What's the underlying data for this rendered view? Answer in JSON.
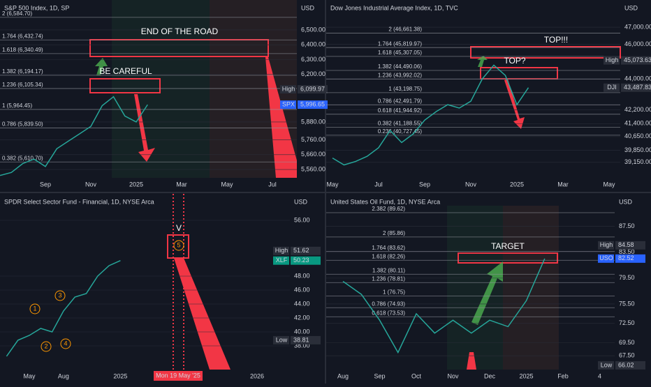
{
  "chart_data": [
    {
      "type": "line",
      "title": "S&P 500 Index, 1D, SP",
      "currency": "USD",
      "color": "#26a69a",
      "fib_color": "#9598a1",
      "categories": [
        null,
        null,
        null,
        null,
        "Sep",
        null,
        null,
        null,
        "Nov",
        null,
        null,
        null,
        "2025",
        null,
        null,
        null,
        "Mar",
        null,
        null,
        null,
        "May",
        null,
        null,
        null,
        "Jul",
        null,
        null
      ],
      "values": [
        5520,
        5540,
        5600,
        5630,
        5580,
        5700,
        5750,
        5800,
        5850,
        5990,
        6050,
        5920,
        5880,
        5996.65,
        null,
        null,
        null,
        null,
        null,
        null,
        null,
        null,
        null,
        null,
        null,
        null,
        null
      ],
      "ylim": [
        5504,
        6678
      ],
      "yticks": [
        {
          "value": 6500,
          "label": "6,500.00"
        },
        {
          "value": 6400,
          "label": "6,400.00"
        },
        {
          "value": 6300,
          "label": "6,300.00"
        },
        {
          "value": 6200,
          "label": "6,200.00"
        },
        {
          "value": 5880,
          "label": "5,880.00"
        },
        {
          "value": 5760,
          "label": "5,760.00"
        },
        {
          "value": 5660,
          "label": "5,660.00"
        },
        {
          "value": 5560,
          "label": "5,560.00"
        }
      ],
      "fib_levels": [
        {
          "value": 6584.7,
          "label": "2 (6,584.70)"
        },
        {
          "value": 6432.74,
          "label": "1.764 (6,432.74)"
        },
        {
          "value": 6340.49,
          "label": "1.618 (6,340.49)"
        },
        {
          "value": 6194.17,
          "label": "1.382 (6,194.17)"
        },
        {
          "value": 6105.34,
          "label": "1.236 (6,105.34)"
        },
        {
          "value": 5964.45,
          "label": "1 (5,964.45)"
        },
        {
          "value": 5839.5,
          "label": "0.786 (5,839.50)"
        },
        {
          "value": 5610.7,
          "label": "0.382 (5,610.70)"
        }
      ],
      "price_labels": [
        {
          "name": "High",
          "value": 6099.97,
          "label": "6,099.97",
          "color": "#2a2e39"
        },
        {
          "name": "SPX",
          "value": 5996.65,
          "label": "5,996.65",
          "color": "#2962ff"
        }
      ],
      "annotations": [
        "END OF THE ROAD",
        "BE CAREFUL"
      ]
    },
    {
      "type": "line",
      "title": "Dow Jones Industrial Average Index, 1D, TVC",
      "currency": "USD",
      "color": "#26a69a",
      "fib_color": "#9598a1",
      "categories": [
        "May",
        null,
        null,
        null,
        "Jul",
        null,
        null,
        null,
        "Sep",
        null,
        null,
        null,
        "Nov",
        null,
        null,
        null,
        "2025",
        null,
        null,
        null,
        "Mar",
        null,
        null,
        null,
        "May"
      ],
      "values": [
        39400,
        39000,
        39200,
        39500,
        40000,
        41000,
        40300,
        40800,
        41600,
        42100,
        42500,
        42300,
        42700,
        44000,
        44800,
        44200,
        42500,
        43487.83,
        null,
        null,
        null,
        null,
        null,
        null,
        null
      ],
      "ylim": [
        38250,
        48380
      ],
      "yticks": [
        {
          "value": 47000,
          "label": "47,000.00"
        },
        {
          "value": 46000,
          "label": "46,000.00"
        },
        {
          "value": 44000,
          "label": "44,000.00"
        },
        {
          "value": 42200,
          "label": "42,200.00"
        },
        {
          "value": 41400,
          "label": "41,400.00"
        },
        {
          "value": 40650,
          "label": "40,650.00"
        },
        {
          "value": 39850,
          "label": "39,850.00"
        },
        {
          "value": 39150,
          "label": "39,150.00"
        }
      ],
      "fib_levels": [
        {
          "value": 46661.38,
          "label": "2 (46,661.38)"
        },
        {
          "value": 45819.97,
          "label": "1.764 (45,819.97)"
        },
        {
          "value": 45307.05,
          "label": "1.618 (45,307.05)"
        },
        {
          "value": 44490.06,
          "label": "1.382 (44,490.06)"
        },
        {
          "value": 43992.02,
          "label": "1.236 (43,992.02)"
        },
        {
          "value": 43198.75,
          "label": "1 (43,198.75)"
        },
        {
          "value": 42491.79,
          "label": "0.786 (42,491.79)"
        },
        {
          "value": 41944.92,
          "label": "0.618 (41,944.92)"
        },
        {
          "value": 41188.55,
          "label": "0.382 (41,188.55)"
        },
        {
          "value": 40727.45,
          "label": "0.236 (40,727.45)"
        }
      ],
      "price_labels": [
        {
          "name": "High",
          "value": 45073.63,
          "label": "45,073.63",
          "color": "#2a2e39"
        },
        {
          "name": "DJI",
          "value": 43487.83,
          "label": "43,487.83",
          "color": "#2a2e39"
        }
      ],
      "annotations": [
        "TOP!!!",
        "TOP?"
      ]
    },
    {
      "type": "line",
      "title": "SPDR Select Sector Fund - Financial, 1D, NYSE Arca",
      "currency": "USD",
      "color": "#26a69a",
      "fib_color": "#9598a1",
      "categories": [
        null,
        null,
        "May",
        null,
        null,
        "Aug",
        null,
        null,
        null,
        null,
        "2025",
        null,
        null,
        null,
        null,
        null,
        null,
        null,
        null,
        null,
        null,
        null,
        "2026",
        null,
        null
      ],
      "values": [
        36.5,
        38.81,
        39.5,
        40.5,
        40,
        43,
        45,
        45.5,
        48,
        49.5,
        50.23,
        null,
        null,
        null,
        null,
        null,
        null,
        null,
        null,
        null,
        null,
        null,
        null,
        null,
        null
      ],
      "ylim": [
        35.1,
        58.1
      ],
      "yticks": [
        {
          "value": 56,
          "label": "56.00"
        },
        {
          "value": 48,
          "label": "48.00"
        },
        {
          "value": 46,
          "label": "46.00"
        },
        {
          "value": 44,
          "label": "44.00"
        },
        {
          "value": 42,
          "label": "42.00"
        },
        {
          "value": 40,
          "label": "40.00"
        },
        {
          "value": 38,
          "label": "38.00"
        }
      ],
      "fib_levels": [],
      "price_labels": [
        {
          "name": "High",
          "value": 51.62,
          "color": "#2a2e39"
        },
        {
          "name": "XLF",
          "value": 50.23,
          "color": "#089981"
        },
        {
          "name": "Low",
          "value": 38.81,
          "color": "#2a2e39"
        }
      ],
      "annotations": [
        "V",
        "1",
        "2",
        "3",
        "4",
        "5"
      ],
      "date_label": "Mon 19 May '25"
    },
    {
      "type": "line",
      "title": "United States Oil Fund, 1D, NYSE Arca",
      "currency": "USD",
      "color": "#26a69a",
      "fib_color": "#9598a1",
      "categories": [
        "Aug",
        null,
        "Sep",
        null,
        "Oct",
        null,
        "Nov",
        null,
        "Dec",
        null,
        "2025",
        null,
        "Feb",
        null,
        "4"
      ],
      "values": [
        79,
        77,
        73,
        68,
        74,
        71,
        73,
        71,
        73,
        72,
        76,
        82.52,
        null,
        null,
        null
      ],
      "ylim": [
        65.9,
        90.7
      ],
      "yticks": [
        {
          "value": 87.5,
          "label": "87.50"
        },
        {
          "value": 83.5,
          "label": "83.50"
        },
        {
          "value": 79.5,
          "label": "79.50"
        },
        {
          "value": 75.5,
          "label": "75.50"
        },
        {
          "value": 72.5,
          "label": "72.50"
        },
        {
          "value": 69.5,
          "label": "69.50"
        },
        {
          "value": 67.5,
          "label": "67.50"
        }
      ],
      "fib_levels": [
        {
          "value": 89.62,
          "label": "2.382 (89.62)"
        },
        {
          "value": 85.86,
          "label": "2 (85.86)"
        },
        {
          "value": 83.62,
          "label": "1.764 (83.62)"
        },
        {
          "value": 82.26,
          "label": "1.618 (82.26)"
        },
        {
          "value": 80.11,
          "label": "1.382 (80.11)"
        },
        {
          "value": 78.81,
          "label": "1.236 (78.81)"
        },
        {
          "value": 76.75,
          "label": "1 (76.75)"
        },
        {
          "value": 74.93,
          "label": "0.786 (74.93)"
        },
        {
          "value": 73.53,
          "label": "0.618 (73.53)"
        }
      ],
      "price_labels": [
        {
          "name": "High",
          "value": 84.58,
          "color": "#2a2e39"
        },
        {
          "name": "USO",
          "value": 82.52,
          "color": "#2962ff"
        },
        {
          "name": "Low",
          "value": 66.02,
          "color": "#2a2e39"
        }
      ],
      "annotations": [
        "TARGET"
      ]
    }
  ]
}
